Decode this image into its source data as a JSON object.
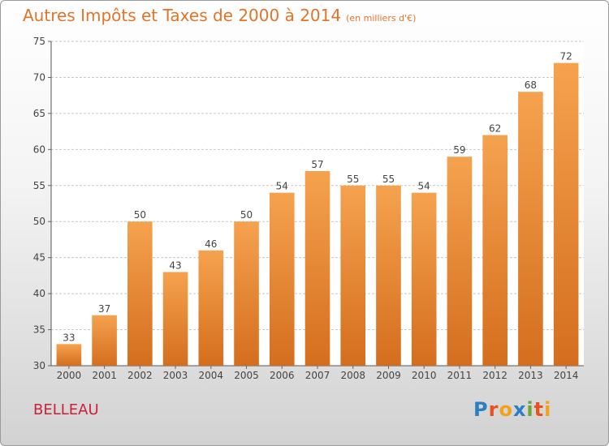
{
  "title": "Autres Impôts et Taxes de 2000 à 2014",
  "subtitle": "(en milliers d'€)",
  "location": "BELLEAU",
  "logo": {
    "letters": [
      "P",
      "r",
      "o",
      "x",
      "i",
      "t",
      "i"
    ],
    "colors": [
      "#2a7fc4",
      "#e8501e",
      "#f3a01b",
      "#2a7fc4",
      "#6aa637",
      "#e8501e",
      "#f3a01b"
    ]
  },
  "colors": {
    "bar_top": "#f5a24e",
    "bar_bottom": "#d46e1e",
    "title": "#e2742a",
    "location": "#cc1f3a"
  },
  "chart_data": {
    "type": "bar",
    "title": "Autres Impôts et Taxes de 2000 à 2014",
    "subtitle": "(en milliers d'€)",
    "categories": [
      "2000",
      "2001",
      "2002",
      "2003",
      "2004",
      "2005",
      "2006",
      "2007",
      "2008",
      "2009",
      "2010",
      "2011",
      "2012",
      "2013",
      "2014"
    ],
    "values": [
      33,
      37,
      50,
      43,
      46,
      50,
      54,
      57,
      55,
      55,
      54,
      59,
      62,
      68,
      72
    ],
    "ylim": [
      30,
      75
    ],
    "yticks": [
      30,
      35,
      40,
      45,
      50,
      55,
      60,
      65,
      70,
      75
    ],
    "grid": true,
    "data_labels": true
  }
}
